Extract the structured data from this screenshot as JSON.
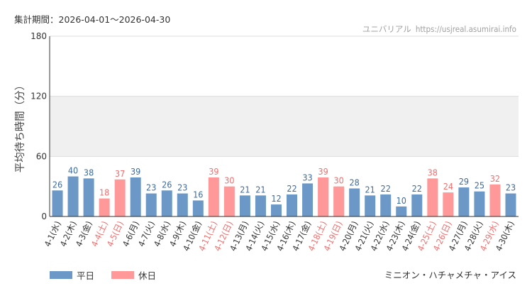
{
  "header": {
    "period": "集計期間：2026-04-01～2026-04-30",
    "source_name": "ユニバリアル",
    "source_url": "https://usjreal.asumirai.info"
  },
  "footer": {
    "attraction": "ミニオン・ハチャメチャ・アイス"
  },
  "legend": {
    "weekday": "平日",
    "holiday": "休日"
  },
  "colors": {
    "weekday": "#6b98c6",
    "holiday": "#ff9999",
    "weekday_label": "#3d6b9e",
    "holiday_label": "#f26d6d",
    "band": "#f0f0f0",
    "grid": "#dcdcdc",
    "axis": "#333333"
  },
  "chart_data": {
    "type": "bar",
    "ylabel": "平均待ち時間（分）",
    "ylim": [
      0,
      180
    ],
    "yticks": [
      0,
      60,
      120,
      180
    ],
    "shaded_range": [
      60,
      120
    ],
    "categories": [
      "4-1(水)",
      "4-2(木)",
      "4-3(金)",
      "4-4(土)",
      "4-5(日)",
      "4-6(月)",
      "4-7(火)",
      "4-8(水)",
      "4-9(木)",
      "4-10(金)",
      "4-11(土)",
      "4-12(日)",
      "4-13(月)",
      "4-14(火)",
      "4-15(水)",
      "4-16(木)",
      "4-17(金)",
      "4-18(土)",
      "4-19(日)",
      "4-20(月)",
      "4-21(火)",
      "4-22(水)",
      "4-23(木)",
      "4-24(金)",
      "4-25(土)",
      "4-26(日)",
      "4-27(月)",
      "4-28(火)",
      "4-29(水)",
      "4-30(木)"
    ],
    "values": [
      26,
      40,
      38,
      18,
      37,
      39,
      23,
      26,
      23,
      16,
      39,
      30,
      21,
      21,
      12,
      22,
      33,
      39,
      30,
      28,
      21,
      22,
      10,
      22,
      38,
      24,
      29,
      25,
      32,
      23
    ],
    "day_type": [
      "weekday",
      "weekday",
      "weekday",
      "holiday",
      "holiday",
      "weekday",
      "weekday",
      "weekday",
      "weekday",
      "weekday",
      "holiday",
      "holiday",
      "weekday",
      "weekday",
      "weekday",
      "weekday",
      "weekday",
      "holiday",
      "holiday",
      "weekday",
      "weekday",
      "weekday",
      "weekday",
      "weekday",
      "holiday",
      "holiday",
      "weekday",
      "weekday",
      "holiday",
      "weekday"
    ],
    "legend_position": "bottom-left",
    "grid": true
  }
}
